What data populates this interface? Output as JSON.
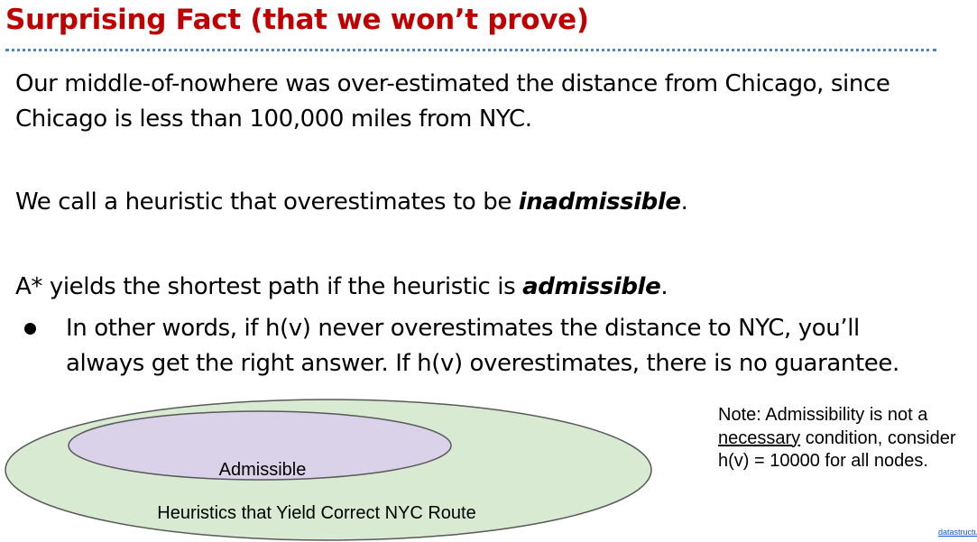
{
  "slide": {
    "title": "Surprising Fact (that we won’t prove)",
    "para1": "Our middle-of-nowhere was over-estimated the distance from Chicago, since Chicago is less than 100,000 miles from NYC.",
    "para2": {
      "prefix": "We call a heuristic that overestimates to be ",
      "emphasis": "inadmissible",
      "suffix": "."
    },
    "para3": {
      "prefix": "A* yields the shortest path if the heuristic is ",
      "emphasis": "admissible",
      "suffix": "."
    },
    "bullet": "In other words, if h(v) never overestimates the distance to NYC, you’ll always get the right answer. If h(v) overestimates, there is no guarantee."
  },
  "diagram": {
    "outer_label": "Heuristics that Yield Correct NYC Route",
    "inner_label": "Admissible",
    "colors": {
      "outer_fill": "#d9ead3",
      "inner_fill": "#d9d2e9",
      "stroke": "#595959"
    }
  },
  "note": {
    "prefix": "Note: Admissibility is not a ",
    "underlined": "necessary",
    "suffix": " condition, consider h(v) = 10000 for all nodes."
  },
  "footer": {
    "link_text": "datastructur.es"
  },
  "colors": {
    "title": "#c00000",
    "rule": "#4a86c5"
  }
}
